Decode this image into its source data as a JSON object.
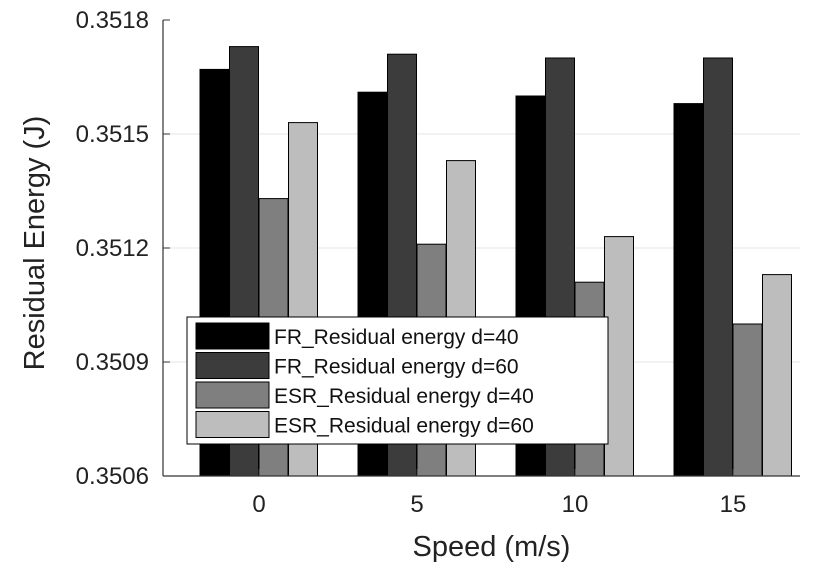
{
  "chart_data": {
    "type": "bar",
    "title": "",
    "xlabel": "Speed (m/s)",
    "ylabel": "Residual Energy (J)",
    "categories": [
      "0",
      "5",
      "10",
      "15"
    ],
    "series": [
      {
        "name": "FR_Residual energy d=40",
        "color": "#000000",
        "values": [
          0.35167,
          0.35161,
          0.3516,
          0.35158
        ]
      },
      {
        "name": "FR_Residual energy d=60",
        "color": "#3c3c3c",
        "values": [
          0.35173,
          0.35171,
          0.3517,
          0.3517
        ]
      },
      {
        "name": "ESR_Residual energy d=40",
        "color": "#7f7f7f",
        "values": [
          0.35133,
          0.35121,
          0.35111,
          0.351
        ]
      },
      {
        "name": "ESR_Residual energy d=60",
        "color": "#bdbdbd",
        "values": [
          0.35153,
          0.35143,
          0.35123,
          0.35113
        ]
      }
    ],
    "ylim": [
      0.3506,
      0.3518
    ],
    "yticks": [
      "0.3506",
      "0.3509",
      "0.3512",
      "0.3515",
      "0.3518"
    ],
    "grid": true,
    "legend_position": "bottom-left"
  }
}
